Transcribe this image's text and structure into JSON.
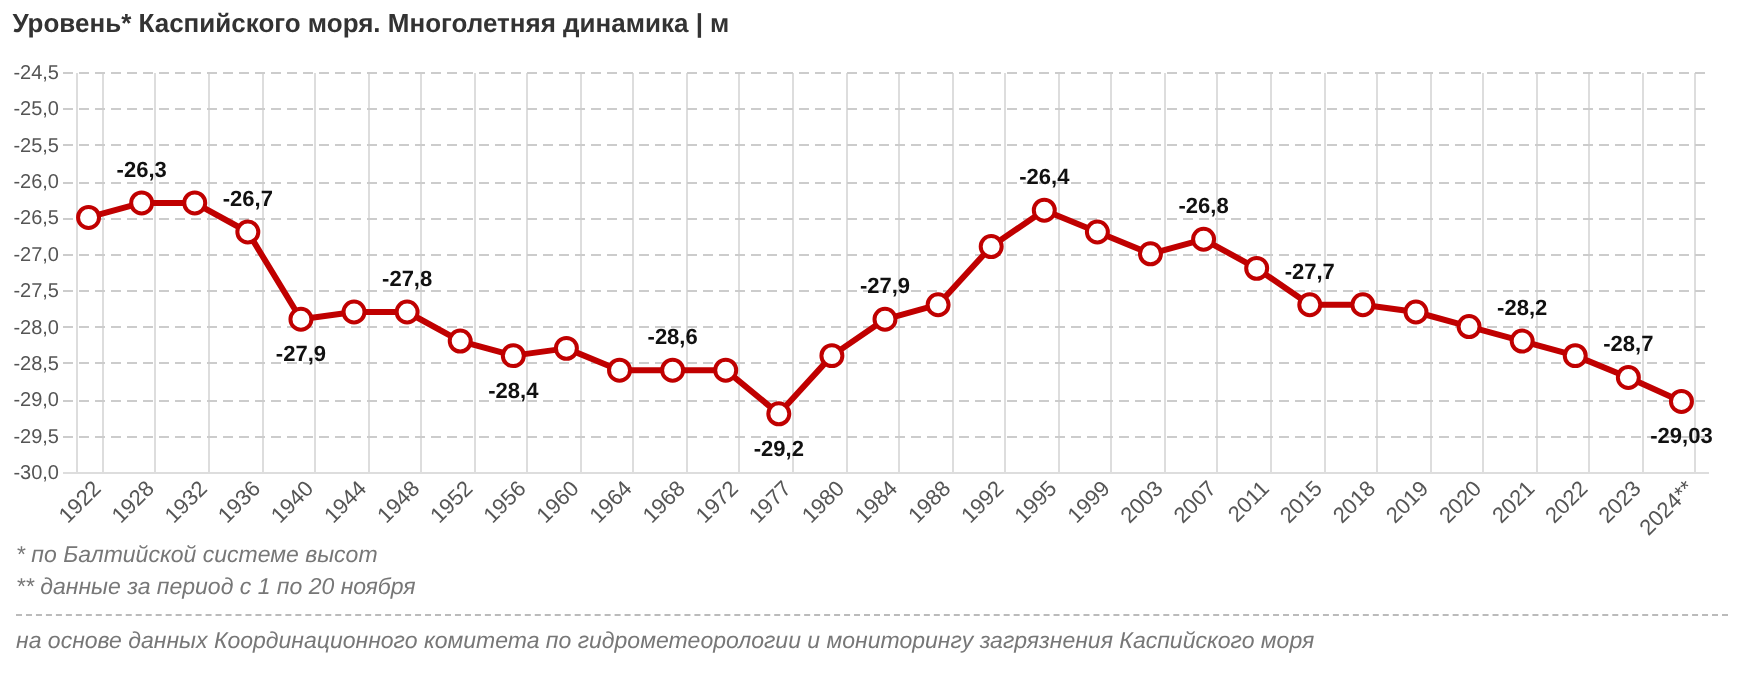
{
  "chart_data": {
    "type": "line",
    "title": "Уровень* Каспийского моря. Многолетняя динамика | м",
    "categories": [
      "1922",
      "1928",
      "1932",
      "1936",
      "1940",
      "1944",
      "1948",
      "1952",
      "1956",
      "1960",
      "1964",
      "1968",
      "1972",
      "1977",
      "1980",
      "1984",
      "1988",
      "1992",
      "1995",
      "1999",
      "2003",
      "2007",
      "2011",
      "2015",
      "2018",
      "2019",
      "2020",
      "2021",
      "2022",
      "2023",
      "2024**"
    ],
    "series": [
      {
        "color": "#c00000",
        "values": [
          -26.5,
          -26.3,
          -26.3,
          -26.7,
          -27.9,
          -27.8,
          -27.8,
          -28.2,
          -28.4,
          -28.3,
          -28.6,
          -28.6,
          -28.6,
          -29.2,
          -28.4,
          -27.9,
          -27.7,
          -26.9,
          -26.4,
          -26.7,
          -27.0,
          -26.8,
          -27.2,
          -27.7,
          -27.7,
          -27.8,
          -28.0,
          -28.2,
          -28.4,
          -28.7,
          -29.03
        ],
        "value_labels": [
          null,
          "-26,3",
          null,
          "-26,7",
          "-27,9",
          null,
          "-27,8",
          null,
          "-28,4",
          null,
          null,
          "-28,6",
          null,
          "-29,2",
          null,
          "-27,9",
          null,
          null,
          "-26,4",
          null,
          null,
          "-26,8",
          null,
          "-27,7",
          null,
          null,
          null,
          "-28,2",
          null,
          "-28,7",
          "-29,03"
        ]
      }
    ],
    "ylim": [
      -30.0,
      -24.5
    ],
    "yticks": [
      {
        "value": -30.0,
        "label": "-30,0"
      },
      {
        "value": -29.5,
        "label": "-29,5"
      },
      {
        "value": -29.0,
        "label": "-29,0"
      },
      {
        "value": -28.5,
        "label": "-28,5"
      },
      {
        "value": -28.0,
        "label": "-28,0"
      },
      {
        "value": -27.5,
        "label": "-27,5"
      },
      {
        "value": -27.0,
        "label": "-27,0"
      },
      {
        "value": -26.5,
        "label": "-26,5"
      },
      {
        "value": -26.0,
        "label": "-26,0"
      },
      {
        "value": -25.5,
        "label": "-25,5"
      },
      {
        "value": -25.0,
        "label": "-25,0"
      },
      {
        "value": -24.5,
        "label": "-24,5"
      }
    ],
    "grid": true,
    "marker": "circle",
    "line_style": "solid",
    "annotations": [
      "* по Балтийской системе высот",
      "** данные за период с 1 по 20 ноября",
      "на основе данных Координационного комитета по гидрометеорологии и мониторингу загрязнения Каспийского моря"
    ]
  }
}
